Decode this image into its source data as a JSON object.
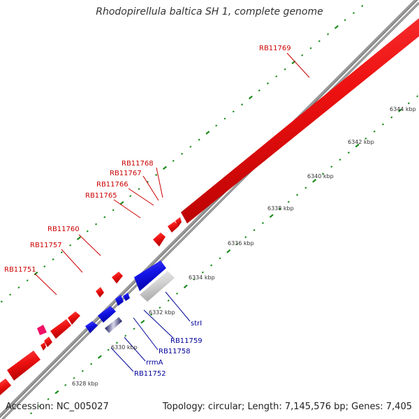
{
  "title": "Rhodopirellula baltica SH 1, complete genome",
  "footer": {
    "accession": "Accession: NC_005027",
    "summary": "Topology: circular; Length: 7,145,576 bp; Genes: 7,405"
  },
  "colors": {
    "forward_gene": "#ee1111",
    "reverse_gene": "#1414e6",
    "rrna": "#2b2b7a",
    "trna": "#ee1166",
    "pseudo_gene": "#cccccc",
    "ruler": "#1b8c1b",
    "backbone": "#888888",
    "forward_label": "#cc0000",
    "reverse_label": "#000099"
  },
  "kbp_ticks": [
    "6328 kbp",
    "6330 kbp",
    "6332 kbp",
    "6334 kbp",
    "6336 kbp",
    "6338 kbp",
    "6340 kbp",
    "6342 kbp",
    "6344 kbp"
  ],
  "forward_gene_labels": [
    "RB11751",
    "RB11757",
    "RB11760",
    "RB11765",
    "RB11766",
    "RB11767",
    "RB11768",
    "RB11769"
  ],
  "reverse_gene_labels": [
    "strI",
    "RB11759",
    "RB11758",
    "rrmA",
    "RB11752"
  ]
}
